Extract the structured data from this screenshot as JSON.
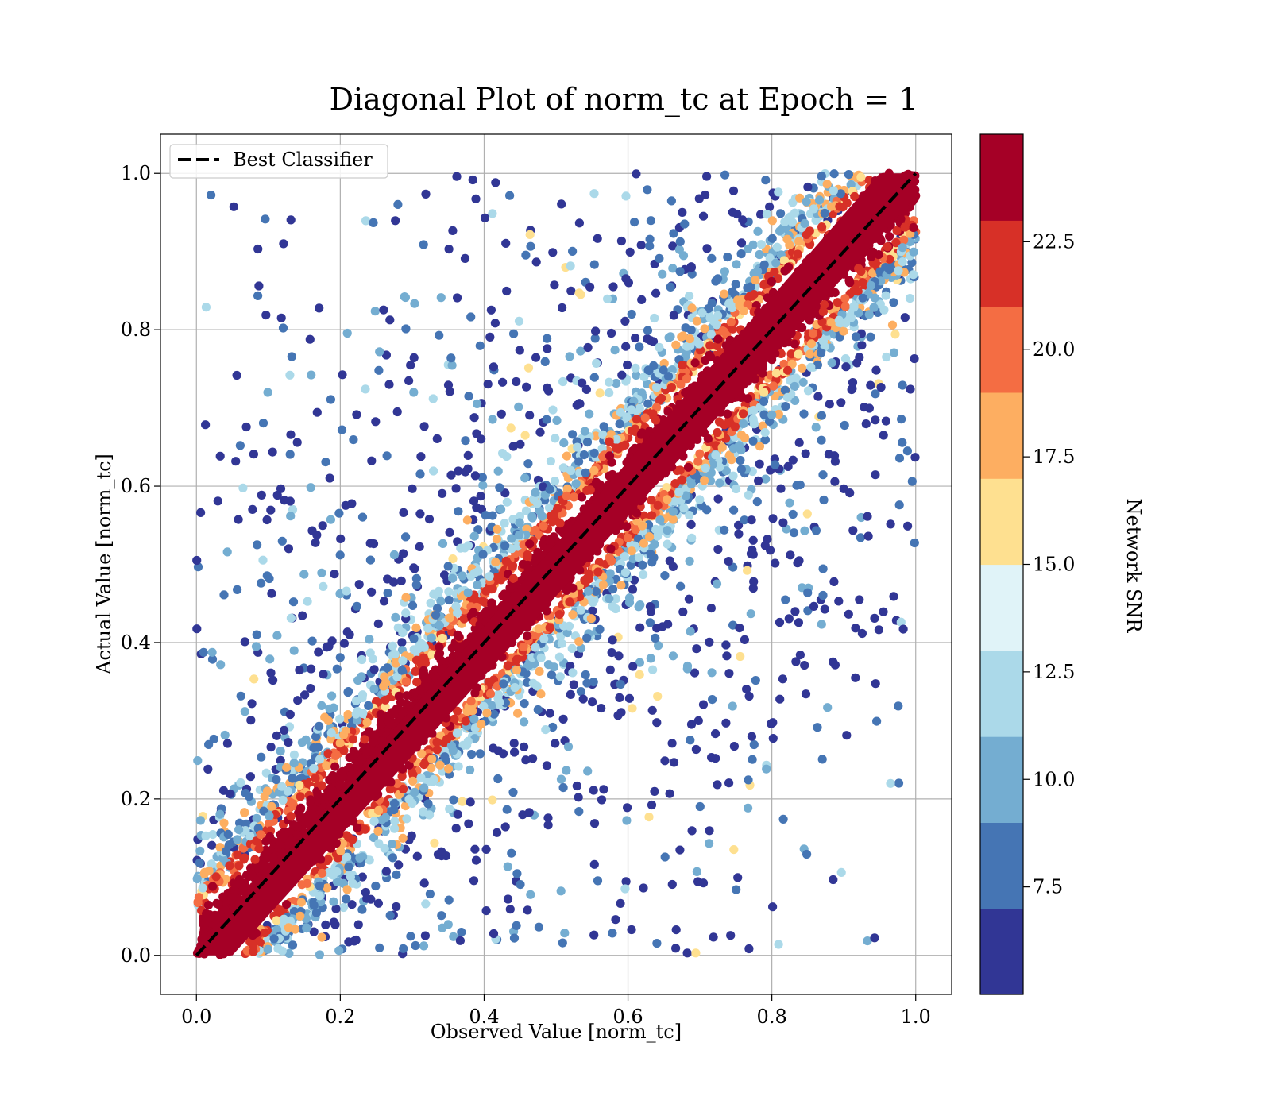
{
  "chart_data": {
    "type": "scatter",
    "title": "Diagonal Plot of norm_tc at Epoch = 1",
    "xlabel": "Observed Value [norm_tc]",
    "ylabel": "Actual Value [norm_tc]",
    "xlim": [
      -0.05,
      1.05
    ],
    "ylim": [
      -0.05,
      1.05
    ],
    "x_ticks": [
      "0.0",
      "0.2",
      "0.4",
      "0.6",
      "0.8",
      "1.0"
    ],
    "y_ticks": [
      "0.0",
      "0.2",
      "0.4",
      "0.6",
      "0.8",
      "1.0"
    ],
    "grid": true,
    "legend": {
      "placement": "upper-left",
      "entries": [
        {
          "label": "Best Classifier",
          "style": "dashed",
          "color": "#000000"
        }
      ]
    },
    "reference_line": {
      "label": "Best Classifier",
      "x": [
        0.0,
        1.0
      ],
      "y": [
        0.0,
        1.0
      ],
      "style": "dashed",
      "color": "#000000"
    },
    "colorbar": {
      "label": "Network SNR",
      "range": [
        5.0,
        25.0
      ],
      "ticks": [
        "7.5",
        "10.0",
        "12.5",
        "15.0",
        "17.5",
        "20.0",
        "22.5"
      ],
      "colors": [
        "#313695",
        "#4575b4",
        "#74add1",
        "#abd9e9",
        "#e0f3f8",
        "#fee090",
        "#fdae61",
        "#f46d43",
        "#d73027",
        "#a50026"
      ]
    },
    "point_distribution": {
      "x_range": [
        0.0,
        1.0
      ],
      "y_range": [
        0.0,
        1.0
      ],
      "description_of_pattern_kept_in_script": true
    }
  }
}
